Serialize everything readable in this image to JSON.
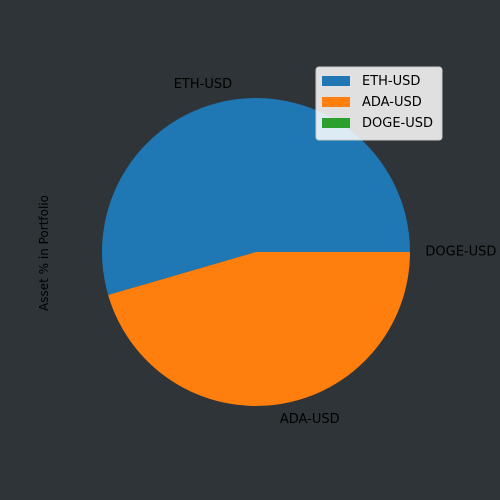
{
  "colors": {
    "background": "#2e3437",
    "legend_background": "#ffffff"
  },
  "chart_data": {
    "type": "pie",
    "title": "",
    "ylabel": "Asset % in Portfolio",
    "slices": [
      {
        "label": "ETH-USD",
        "value": 54.5,
        "color": "#1f77b4"
      },
      {
        "label": "ADA-USD",
        "value": 45.5,
        "color": "#ff7f0e"
      },
      {
        "label": "DOGE-USD",
        "value": 0.0,
        "color": "#2ca02c"
      }
    ],
    "start_angle_deg": 0,
    "direction": "counterclockwise",
    "legend": {
      "placement": "top-right",
      "entries": [
        "ETH-USD",
        "ADA-USD",
        "DOGE-USD"
      ]
    }
  }
}
